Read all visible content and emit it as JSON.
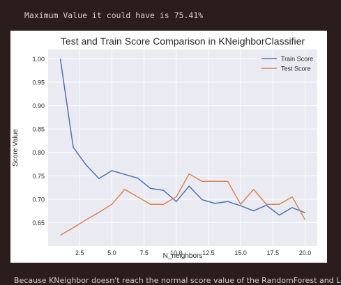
{
  "output": {
    "text": "Maximum Value it could have is 75.41%"
  },
  "chart_data": {
    "type": "line",
    "title": "Test and Train Score Comparison in KNeighborClassifier",
    "xlabel": "N_neighbors",
    "ylabel": "Score Value",
    "xlim": [
      0.05,
      20.95
    ],
    "ylim": [
      0.6,
      1.02
    ],
    "xticks": [
      "2.5",
      "5.0",
      "7.5",
      "10.0",
      "12.5",
      "15.0",
      "17.5",
      "20.0"
    ],
    "yticks": [
      "0.65",
      "0.70",
      "0.75",
      "0.80",
      "0.85",
      "0.90",
      "0.95",
      "1.00"
    ],
    "grid": true,
    "legend_position": "upper-right",
    "x": [
      1,
      2,
      3,
      4,
      5,
      6,
      7,
      8,
      9,
      10,
      11,
      12,
      13,
      14,
      15,
      16,
      17,
      18,
      19,
      20
    ],
    "series": [
      {
        "name": "Train Score",
        "color": "#4c72b0",
        "values": [
          1.0,
          0.811,
          0.773,
          0.744,
          0.761,
          0.753,
          0.745,
          0.723,
          0.719,
          0.695,
          0.728,
          0.699,
          0.691,
          0.695,
          0.686,
          0.675,
          0.687,
          0.666,
          0.682,
          0.671
        ]
      },
      {
        "name": "Test Score",
        "color": "#dd8452",
        "values": [
          0.623,
          0.639,
          0.656,
          0.672,
          0.689,
          0.721,
          0.705,
          0.689,
          0.689,
          0.705,
          0.754,
          0.738,
          0.738,
          0.738,
          0.689,
          0.721,
          0.689,
          0.689,
          0.705,
          0.656
        ]
      }
    ]
  },
  "footer": {
    "text": "Because KNeighbor doesn't reach the normal score value of the RandomForest and Logi"
  }
}
